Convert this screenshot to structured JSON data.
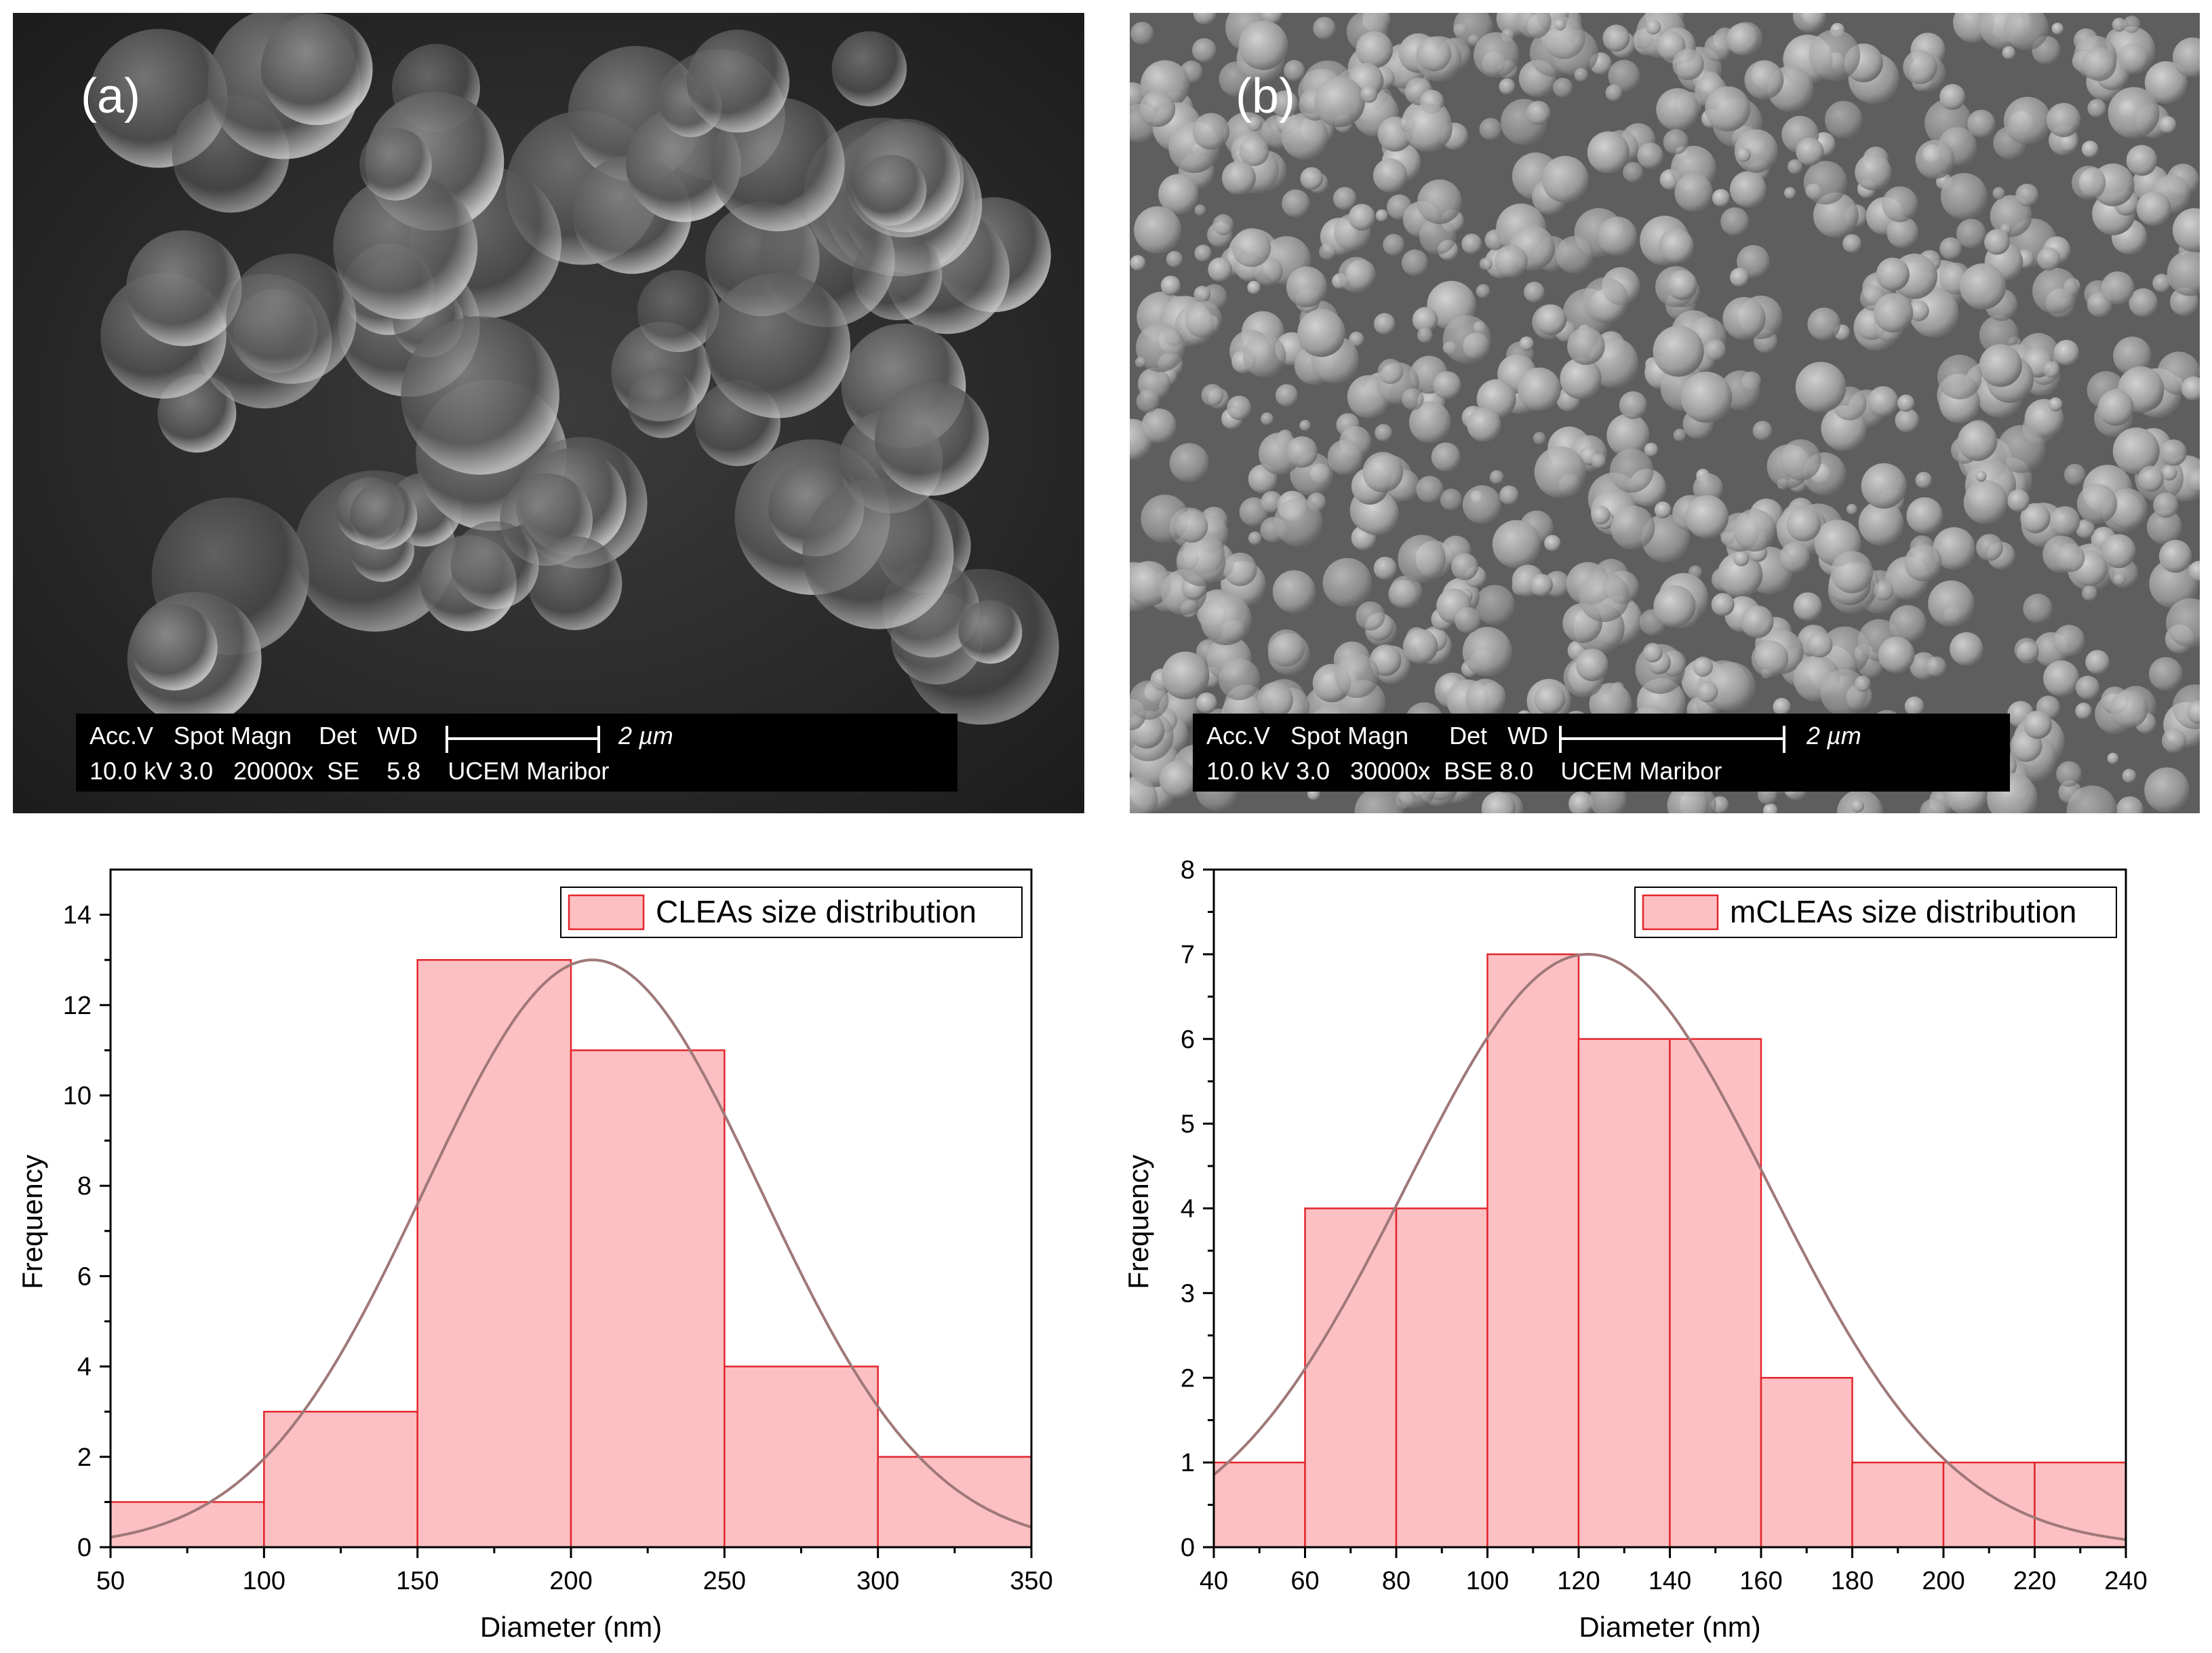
{
  "panels": [
    {
      "label": "(a)",
      "databar": {
        "header": "Acc.V   Spot Magn    Det   WD",
        "values": "10.0 kV 3.0   20000x  SE    5.8    UCEM Maribor",
        "scale_text": "2 µm"
      },
      "brightness": "dark"
    },
    {
      "label": "(b)",
      "databar": {
        "header": "Acc.V   Spot Magn      Det   WD",
        "values": "10.0 kV 3.0   30000x  BSE 8.0    UCEM Maribor",
        "scale_text": "2 µm"
      },
      "brightness": "light"
    }
  ],
  "chart_data": [
    {
      "type": "bar",
      "subtype": "histogram",
      "bins": [
        [
          50,
          100
        ],
        [
          100,
          150
        ],
        [
          150,
          200
        ],
        [
          200,
          250
        ],
        [
          250,
          300
        ],
        [
          300,
          350
        ]
      ],
      "values": [
        1,
        3,
        13,
        11,
        4,
        2
      ],
      "fit": {
        "type": "normal",
        "peak": 13,
        "mean": 207,
        "sd": 55
      },
      "series": [
        {
          "name": "CLEAs size distribution",
          "values": [
            1,
            3,
            13,
            11,
            4,
            2
          ]
        }
      ],
      "xlabel": "Diameter (nm)",
      "ylabel": "Frequency",
      "xlim": [
        50,
        350
      ],
      "ylim": [
        0,
        15
      ],
      "xticks": [
        "50",
        "100",
        "150",
        "200",
        "250",
        "300",
        "350"
      ],
      "yticks": [
        "0",
        "2",
        "4",
        "6",
        "8",
        "10",
        "12",
        "14"
      ],
      "legend": "top-right",
      "colors": {
        "fill": "#fcc0c3",
        "edge": "#e4262c",
        "fit": "#a07878"
      }
    },
    {
      "type": "bar",
      "subtype": "histogram",
      "bins": [
        [
          40,
          60
        ],
        [
          60,
          80
        ],
        [
          80,
          100
        ],
        [
          100,
          120
        ],
        [
          120,
          140
        ],
        [
          140,
          160
        ],
        [
          160,
          180
        ],
        [
          180,
          200
        ],
        [
          200,
          220
        ],
        [
          220,
          240
        ]
      ],
      "values": [
        1,
        4,
        4,
        7,
        6,
        6,
        2,
        1,
        1,
        1
      ],
      "fit": {
        "type": "normal",
        "peak": 7,
        "mean": 122,
        "sd": 40
      },
      "series": [
        {
          "name": "mCLEAs size distribution",
          "values": [
            1,
            4,
            4,
            7,
            6,
            6,
            2,
            1,
            1,
            1
          ]
        }
      ],
      "xlabel": "Diameter (nm)",
      "ylabel": "Frequency",
      "xlim": [
        40,
        240
      ],
      "ylim": [
        0,
        8
      ],
      "xticks": [
        "40",
        "60",
        "80",
        "100",
        "120",
        "140",
        "160",
        "180",
        "200",
        "220",
        "240"
      ],
      "yticks": [
        "0",
        "1",
        "2",
        "3",
        "4",
        "5",
        "6",
        "7",
        "8"
      ],
      "legend": "top-right",
      "colors": {
        "fill": "#fcc0c3",
        "edge": "#e4262c",
        "fit": "#a07878"
      }
    }
  ]
}
